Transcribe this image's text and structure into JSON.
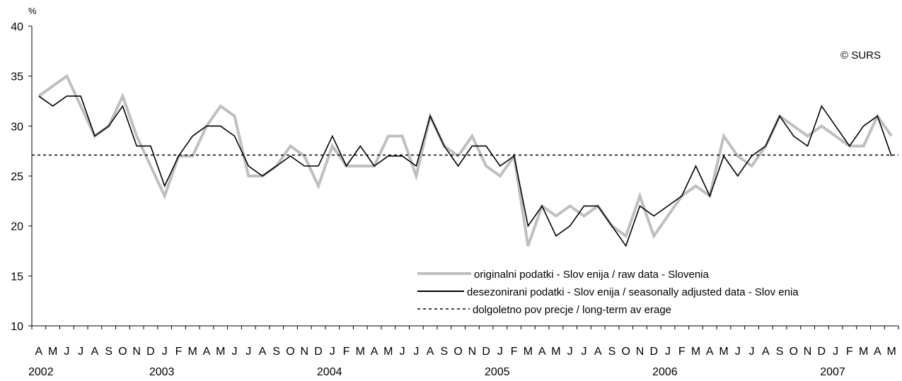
{
  "chart_data": {
    "type": "line",
    "unit_label": "%",
    "copyright": "© SURS",
    "ylim": [
      10,
      40
    ],
    "y_ticks": [
      "10",
      "15",
      "20",
      "25",
      "30",
      "35",
      "40"
    ],
    "months": [
      "A",
      "M",
      "J",
      "J",
      "A",
      "S",
      "O",
      "N",
      "D",
      "J",
      "F",
      "M",
      "A",
      "M",
      "J",
      "J",
      "A",
      "S",
      "O",
      "N",
      "D",
      "J",
      "F",
      "M",
      "A",
      "M",
      "J",
      "J",
      "A",
      "S",
      "O",
      "N",
      "D",
      "J",
      "F",
      "M",
      "A",
      "M",
      "J",
      "J",
      "A",
      "S",
      "O",
      "N",
      "D",
      "J",
      "F",
      "M",
      "A",
      "M",
      "J",
      "J",
      "A",
      "S",
      "O",
      "N",
      "D",
      "J",
      "F",
      "M",
      "A",
      "M"
    ],
    "years": [
      {
        "label": "2002",
        "start": 0
      },
      {
        "label": "2003",
        "start": 9
      },
      {
        "label": "2004",
        "start": 21
      },
      {
        "label": "2005",
        "start": 33
      },
      {
        "label": "2006",
        "start": 45
      },
      {
        "label": "2007",
        "start": 57
      }
    ],
    "series": [
      {
        "name": "originalni podatki - Slov enija / raw data - Slovenia",
        "color": "#bfbfbf",
        "style": "thick",
        "values": [
          33,
          34,
          35,
          32,
          29,
          30,
          33,
          29,
          26,
          23,
          27,
          27,
          30,
          32,
          31,
          25,
          25,
          26,
          28,
          27,
          24,
          28,
          26,
          26,
          26,
          29,
          29,
          25,
          31,
          28,
          27,
          29,
          26,
          25,
          27,
          18,
          22,
          21,
          22,
          21,
          22,
          20,
          19,
          23,
          19,
          21,
          23,
          24,
          23,
          29,
          27,
          26,
          28,
          31,
          30,
          29,
          30,
          29,
          28,
          28,
          31,
          29
        ]
      },
      {
        "name": "desezonirani podatki - Slov enija / seasonally adjusted data - Slov enia",
        "color": "#000000",
        "style": "solid",
        "values": [
          33,
          32,
          33,
          33,
          29,
          30,
          32,
          28,
          28,
          24,
          27,
          29,
          30,
          30,
          29,
          26,
          25,
          26,
          27,
          26,
          26,
          29,
          26,
          28,
          26,
          27,
          27,
          26,
          31,
          28,
          26,
          28,
          28,
          26,
          27,
          20,
          22,
          19,
          20,
          22,
          22,
          20,
          18,
          22,
          21,
          22,
          23,
          26,
          23,
          27,
          25,
          27,
          28,
          31,
          29,
          28,
          32,
          30,
          28,
          30,
          31,
          27
        ]
      },
      {
        "name": "dolgoletno pov precje / long-term av erage",
        "color": "#000000",
        "style": "dotted",
        "constant": 27.1
      }
    ]
  }
}
